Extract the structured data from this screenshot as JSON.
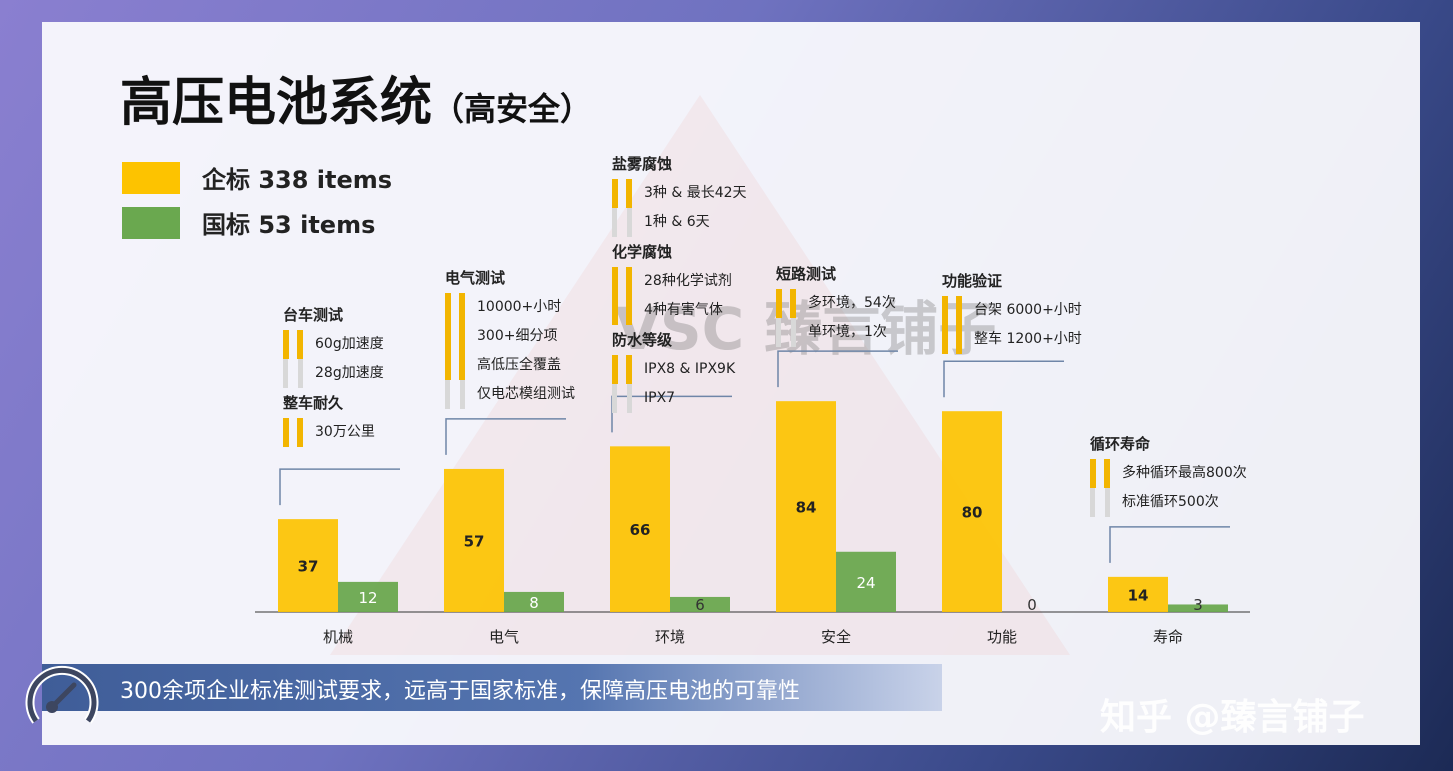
{
  "title": "高压电池系统",
  "subtitle": "（高安全）",
  "legend": [
    {
      "label": "企标 338 items",
      "color": "#fdc300"
    },
    {
      "label": "国标 53 items",
      "color": "#6aa84f"
    }
  ],
  "watermark": "VSC 臻言铺子",
  "footer_text": "300余项企业标准测试要求，远高于国家标准，保障高压电池的可靠性",
  "zhihu_watermark": "知乎 @臻言铺子",
  "chart_data": {
    "type": "bar",
    "categories": [
      "机械",
      "电气",
      "环境",
      "安全",
      "功能",
      "寿命"
    ],
    "series": [
      {
        "name": "企标",
        "color": "#fdc300",
        "values": [
          37,
          57,
          66,
          84,
          80,
          14
        ]
      },
      {
        "name": "国标",
        "color": "#6aa84f",
        "values": [
          12,
          8,
          6,
          24,
          0,
          3
        ]
      }
    ],
    "ylim": [
      0,
      90
    ],
    "annotations": [
      {
        "groups": [
          {
            "title": "台车测试",
            "items": [
              {
                "text": "60g加速度",
                "type": "corp"
              },
              {
                "text": "28g加速度",
                "type": "nat"
              }
            ]
          },
          {
            "title": "整车耐久",
            "items": [
              {
                "text": "30万公里",
                "type": "corp"
              }
            ]
          }
        ]
      },
      {
        "groups": [
          {
            "title": "电气测试",
            "items": [
              {
                "text": "10000+小时",
                "type": "corp"
              },
              {
                "text": "300+细分项",
                "type": "corp"
              },
              {
                "text": "高低压全覆盖",
                "type": "corp"
              },
              {
                "text": "仅电芯模组测试",
                "type": "nat"
              }
            ]
          }
        ]
      },
      {
        "groups": [
          {
            "title": "盐雾腐蚀",
            "items": [
              {
                "text": "3种 & 最长42天",
                "type": "corp"
              },
              {
                "text": "1种 & 6天",
                "type": "nat"
              }
            ]
          },
          {
            "title": "化学腐蚀",
            "items": [
              {
                "text": "28种化学试剂",
                "type": "corp"
              },
              {
                "text": "4种有害气体",
                "type": "corp"
              }
            ]
          },
          {
            "title": "防水等级",
            "items": [
              {
                "text": "IPX8 & IPX9K",
                "type": "corp"
              },
              {
                "text": "IPX7",
                "type": "nat"
              }
            ]
          }
        ]
      },
      {
        "groups": [
          {
            "title": "短路测试",
            "items": [
              {
                "text": "多环境，54次",
                "type": "corp"
              },
              {
                "text": "单环境，1次",
                "type": "nat"
              }
            ]
          }
        ]
      },
      {
        "groups": [
          {
            "title": "功能验证",
            "items": [
              {
                "text": "台架 6000+小时",
                "type": "corp"
              },
              {
                "text": "整车 1200+小时",
                "type": "corp"
              }
            ]
          }
        ]
      },
      {
        "groups": [
          {
            "title": "循环寿命",
            "items": [
              {
                "text": "多种循环最高800次",
                "type": "corp"
              },
              {
                "text": "标准循环500次",
                "type": "nat"
              }
            ]
          }
        ]
      }
    ]
  }
}
